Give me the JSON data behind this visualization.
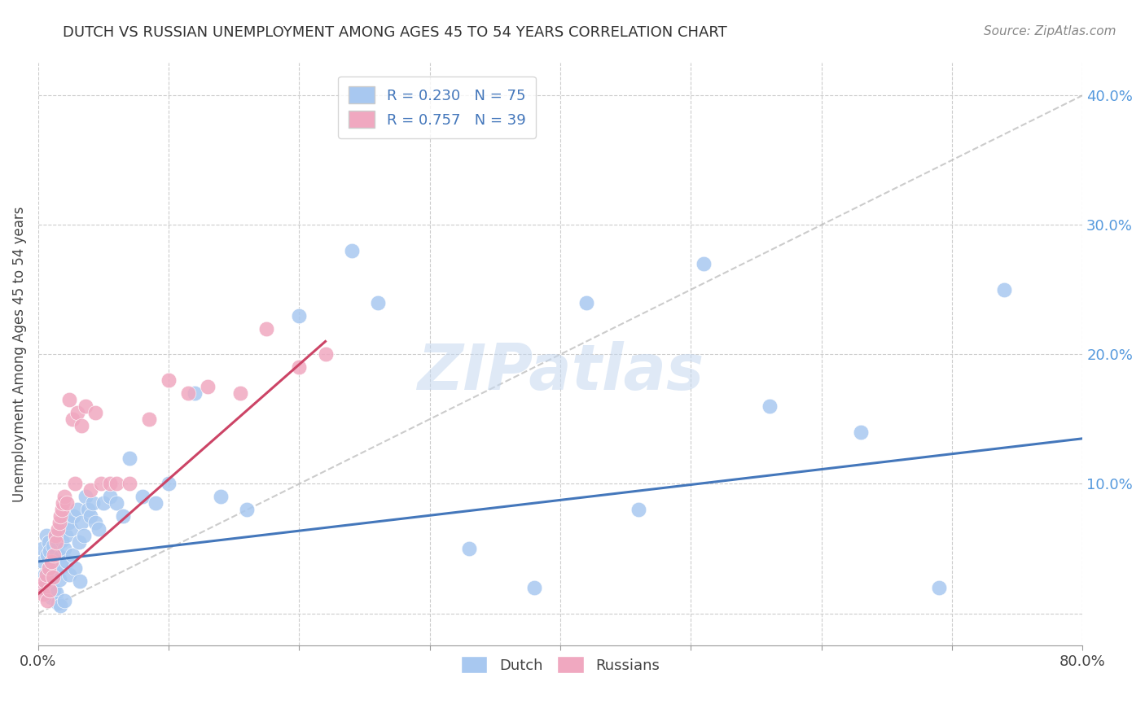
{
  "title": "DUTCH VS RUSSIAN UNEMPLOYMENT AMONG AGES 45 TO 54 YEARS CORRELATION CHART",
  "source": "Source: ZipAtlas.com",
  "ylabel": "Unemployment Among Ages 45 to 54 years",
  "xlim": [
    0.0,
    0.8
  ],
  "ylim": [
    -0.025,
    0.425
  ],
  "dutch_R": 0.23,
  "dutch_N": 75,
  "russian_R": 0.757,
  "russian_N": 39,
  "dutch_color": "#a8c8f0",
  "russian_color": "#f0a8c0",
  "dutch_line_color": "#4477bb",
  "russian_line_color": "#cc4466",
  "diag_color": "#bbbbbb",
  "background_color": "#ffffff",
  "grid_color": "#cccccc",
  "dutch_x": [
    0.003,
    0.004,
    0.005,
    0.005,
    0.006,
    0.006,
    0.007,
    0.007,
    0.008,
    0.008,
    0.009,
    0.009,
    0.01,
    0.01,
    0.011,
    0.011,
    0.012,
    0.012,
    0.013,
    0.013,
    0.014,
    0.014,
    0.015,
    0.015,
    0.016,
    0.016,
    0.017,
    0.017,
    0.018,
    0.018,
    0.019,
    0.02,
    0.02,
    0.021,
    0.022,
    0.023,
    0.024,
    0.025,
    0.026,
    0.027,
    0.028,
    0.03,
    0.031,
    0.032,
    0.033,
    0.035,
    0.036,
    0.038,
    0.04,
    0.042,
    0.044,
    0.046,
    0.05,
    0.055,
    0.06,
    0.065,
    0.07,
    0.08,
    0.09,
    0.1,
    0.12,
    0.14,
    0.16,
    0.2,
    0.24,
    0.26,
    0.33,
    0.38,
    0.42,
    0.46,
    0.51,
    0.56,
    0.63,
    0.69,
    0.74
  ],
  "dutch_y": [
    0.05,
    0.04,
    0.03,
    0.02,
    0.06,
    0.025,
    0.045,
    0.015,
    0.055,
    0.035,
    0.048,
    0.022,
    0.038,
    0.012,
    0.052,
    0.028,
    0.042,
    0.018,
    0.058,
    0.032,
    0.046,
    0.016,
    0.054,
    0.008,
    0.062,
    0.026,
    0.044,
    0.006,
    0.056,
    0.036,
    0.068,
    0.05,
    0.01,
    0.06,
    0.04,
    0.07,
    0.03,
    0.065,
    0.045,
    0.075,
    0.035,
    0.08,
    0.055,
    0.025,
    0.07,
    0.06,
    0.09,
    0.08,
    0.075,
    0.085,
    0.07,
    0.065,
    0.085,
    0.09,
    0.085,
    0.075,
    0.12,
    0.09,
    0.085,
    0.1,
    0.17,
    0.09,
    0.08,
    0.23,
    0.28,
    0.24,
    0.05,
    0.02,
    0.24,
    0.08,
    0.27,
    0.16,
    0.14,
    0.02,
    0.25
  ],
  "russian_x": [
    0.003,
    0.004,
    0.005,
    0.006,
    0.007,
    0.008,
    0.009,
    0.01,
    0.011,
    0.012,
    0.013,
    0.014,
    0.015,
    0.016,
    0.017,
    0.018,
    0.019,
    0.02,
    0.022,
    0.024,
    0.026,
    0.028,
    0.03,
    0.033,
    0.036,
    0.04,
    0.044,
    0.048,
    0.055,
    0.06,
    0.07,
    0.085,
    0.1,
    0.115,
    0.13,
    0.155,
    0.175,
    0.2,
    0.22
  ],
  "russian_y": [
    0.02,
    0.015,
    0.025,
    0.03,
    0.01,
    0.035,
    0.018,
    0.04,
    0.028,
    0.045,
    0.06,
    0.055,
    0.065,
    0.07,
    0.075,
    0.08,
    0.085,
    0.09,
    0.085,
    0.165,
    0.15,
    0.1,
    0.155,
    0.145,
    0.16,
    0.095,
    0.155,
    0.1,
    0.1,
    0.1,
    0.1,
    0.15,
    0.18,
    0.17,
    0.175,
    0.17,
    0.22,
    0.19,
    0.2
  ],
  "dutch_line_x": [
    0.0,
    0.8
  ],
  "dutch_line_y": [
    0.04,
    0.135
  ],
  "russian_line_x": [
    0.0,
    0.22
  ],
  "russian_line_y": [
    0.015,
    0.21
  ],
  "diag_line_x": [
    0.0,
    0.8
  ],
  "diag_line_y": [
    0.0,
    0.4
  ],
  "xtick_pos": [
    0.0,
    0.1,
    0.2,
    0.3,
    0.4,
    0.5,
    0.6,
    0.7,
    0.8
  ],
  "ytick_pos": [
    0.0,
    0.1,
    0.2,
    0.3,
    0.4
  ],
  "legend_r1": "R = 0.230",
  "legend_n1": "N = 75",
  "legend_r2": "R = 0.757",
  "legend_n2": "N = 39",
  "watermark": "ZIPatlas",
  "title_fontsize": 13,
  "label_fontsize": 12,
  "tick_fontsize": 13,
  "legend_fontsize": 13
}
